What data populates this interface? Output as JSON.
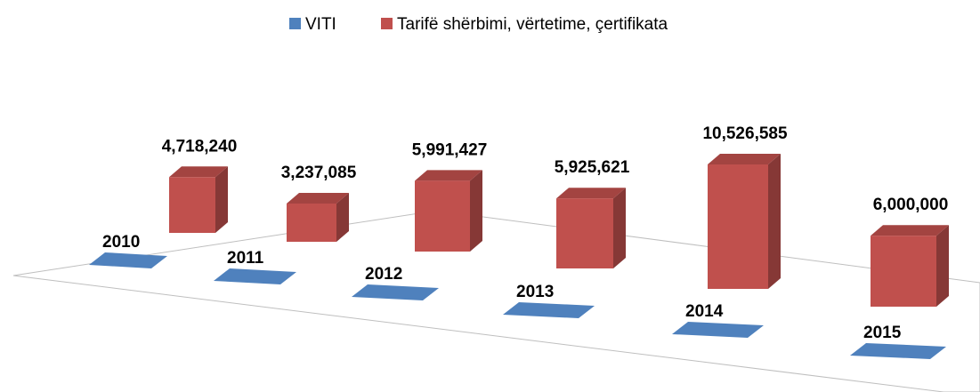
{
  "chart_data": {
    "type": "bar3d",
    "series": [
      {
        "name": "VITI",
        "color": "#4f81bd",
        "values": [
          2010,
          2011,
          2012,
          2013,
          2014,
          2015
        ]
      },
      {
        "name": "Tarifë shërbimi, vërtetime, çertifikata",
        "color": "#c0504d",
        "values": [
          4718240,
          3237085,
          5991427,
          5925621,
          10526585,
          6000000
        ],
        "value_labels": [
          "4,718,240",
          "3,237,085",
          "5,991,427",
          "5,925,621",
          "10,526,585",
          "6,000,000"
        ]
      }
    ],
    "legend": "top"
  }
}
